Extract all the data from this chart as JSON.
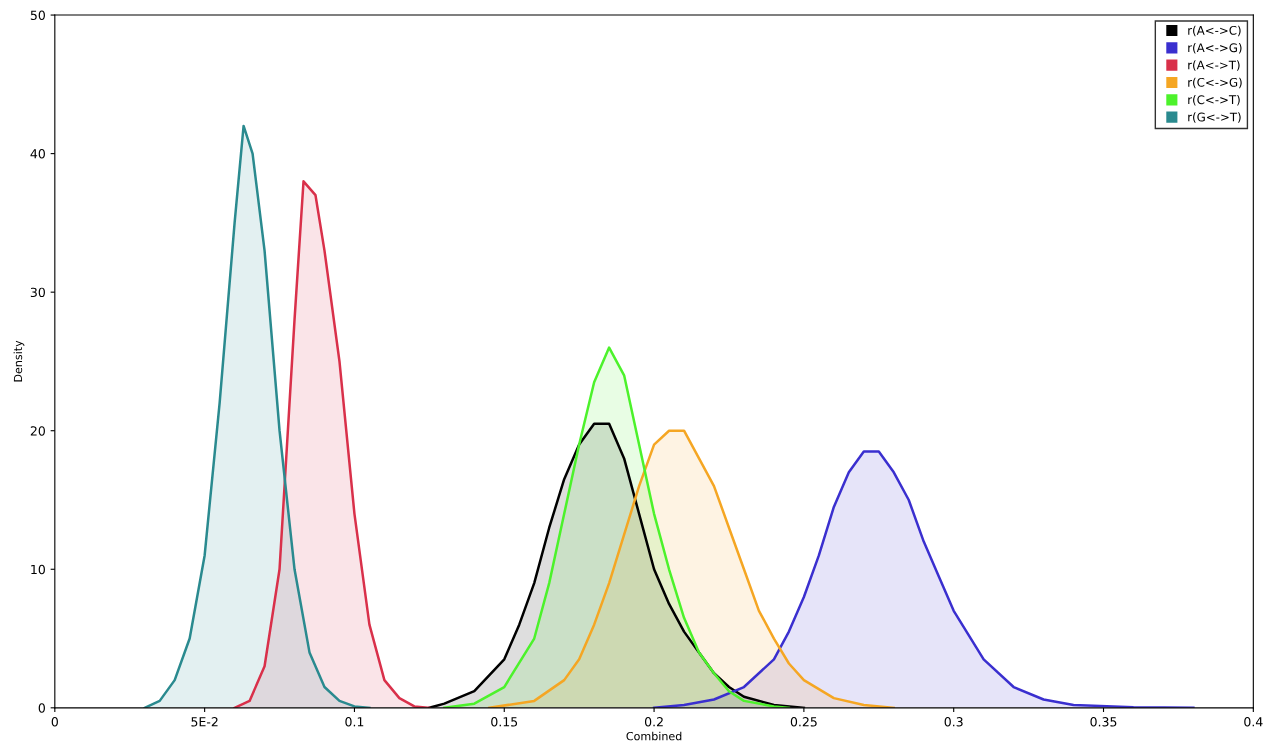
{
  "chart_data": {
    "type": "area",
    "xlabel": "Combined",
    "ylabel": "Density",
    "xlim": [
      0,
      0.4
    ],
    "ylim": [
      0,
      50
    ],
    "xticks": [
      0,
      {
        "value": 0.05,
        "label": "5E-2"
      },
      0.1,
      0.15,
      0.2,
      0.25,
      0.3,
      0.35,
      0.4
    ],
    "yticks": [
      0,
      10,
      20,
      30,
      40,
      50
    ],
    "grid": false,
    "legend": "top right",
    "series": [
      {
        "name": "r(A<->C)",
        "color": "#000000",
        "x": [
          0.125,
          0.13,
          0.14,
          0.15,
          0.155,
          0.16,
          0.165,
          0.17,
          0.175,
          0.18,
          0.185,
          0.19,
          0.195,
          0.2,
          0.205,
          0.21,
          0.215,
          0.22,
          0.225,
          0.23,
          0.24,
          0.25
        ],
        "values": [
          0,
          0.3,
          1.2,
          3.5,
          6,
          9,
          13,
          16.5,
          19,
          20.5,
          20.5,
          18,
          14,
          10,
          7.5,
          5.5,
          4,
          2.5,
          1.5,
          0.8,
          0.2,
          0
        ]
      },
      {
        "name": "r(A<->G)",
        "color": "#3a2fcf",
        "x": [
          0.2,
          0.21,
          0.22,
          0.23,
          0.24,
          0.245,
          0.25,
          0.255,
          0.26,
          0.265,
          0.27,
          0.275,
          0.28,
          0.285,
          0.29,
          0.295,
          0.3,
          0.31,
          0.32,
          0.33,
          0.34,
          0.36,
          0.38
        ],
        "values": [
          0,
          0.2,
          0.6,
          1.5,
          3.5,
          5.5,
          8,
          11,
          14.5,
          17,
          18.5,
          18.5,
          17,
          15,
          12,
          9.5,
          7,
          3.5,
          1.5,
          0.6,
          0.2,
          0.05,
          0
        ]
      },
      {
        "name": "r(A<->T)",
        "color": "#d9304a",
        "x": [
          0.06,
          0.065,
          0.07,
          0.075,
          0.08,
          0.083,
          0.087,
          0.09,
          0.095,
          0.1,
          0.105,
          0.11,
          0.115,
          0.12,
          0.125
        ],
        "values": [
          0,
          0.5,
          3,
          10,
          28,
          38,
          37,
          33,
          25,
          14,
          6,
          2,
          0.7,
          0.1,
          0
        ]
      },
      {
        "name": "r(C<->G)",
        "color": "#f5a623",
        "x": [
          0.145,
          0.16,
          0.17,
          0.175,
          0.18,
          0.185,
          0.19,
          0.195,
          0.2,
          0.205,
          0.21,
          0.215,
          0.22,
          0.225,
          0.23,
          0.235,
          0.24,
          0.245,
          0.25,
          0.26,
          0.27,
          0.28
        ],
        "values": [
          0,
          0.5,
          2,
          3.5,
          6,
          9,
          12.5,
          16,
          19,
          20,
          20,
          18,
          16,
          13,
          10,
          7,
          5,
          3.2,
          2,
          0.7,
          0.2,
          0
        ]
      },
      {
        "name": "r(C<->T)",
        "color": "#4cf22b",
        "x": [
          0.13,
          0.14,
          0.15,
          0.16,
          0.165,
          0.17,
          0.175,
          0.18,
          0.185,
          0.19,
          0.195,
          0.2,
          0.205,
          0.21,
          0.215,
          0.22,
          0.225,
          0.23,
          0.24,
          0.245
        ],
        "values": [
          0,
          0.3,
          1.5,
          5,
          9,
          14,
          19,
          23.5,
          26,
          24,
          19,
          14,
          10,
          6.5,
          4,
          2.5,
          1.2,
          0.5,
          0.1,
          0
        ]
      },
      {
        "name": "r(G<->T)",
        "color": "#2a8a8f",
        "x": [
          0.03,
          0.035,
          0.04,
          0.045,
          0.05,
          0.055,
          0.06,
          0.063,
          0.066,
          0.07,
          0.075,
          0.08,
          0.085,
          0.09,
          0.095,
          0.1,
          0.105
        ],
        "values": [
          0,
          0.5,
          2,
          5,
          11,
          22,
          35,
          42,
          40,
          33,
          20,
          10,
          4,
          1.5,
          0.5,
          0.1,
          0
        ]
      }
    ]
  }
}
